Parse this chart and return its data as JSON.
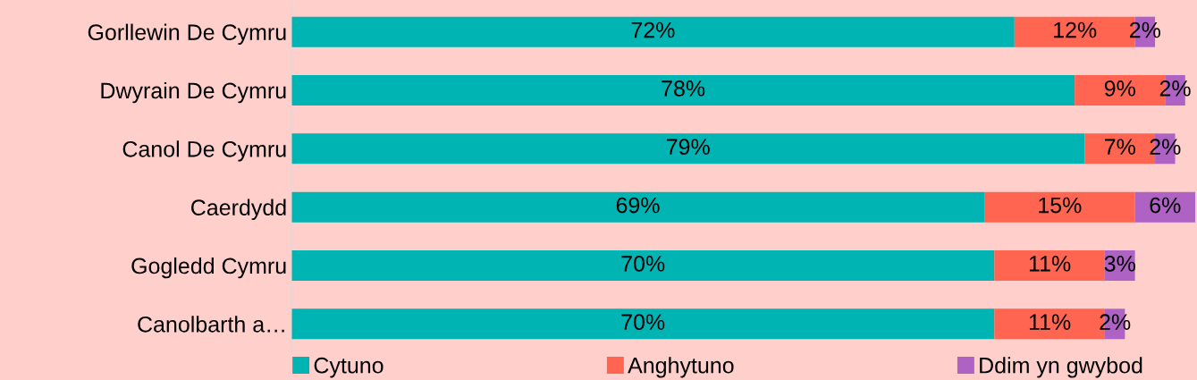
{
  "chart_data": {
    "type": "bar",
    "orientation": "horizontal",
    "stacked": true,
    "categories": [
      "Gorllewin De Cymru",
      "Dwyrain De Cymru",
      "Canol De Cymru",
      "Caerdydd",
      "Gogledd Cymru",
      "Canolbarth a…"
    ],
    "series": [
      {
        "name": "Cytuno",
        "color": "#00b4b4",
        "values": [
          72,
          78,
          79,
          69,
          70,
          70
        ],
        "value_labels": [
          "72%",
          "78%",
          "79%",
          "69%",
          "70%",
          "70%"
        ]
      },
      {
        "name": "Anghytuno",
        "color": "#ff6551",
        "values": [
          12,
          9,
          7,
          15,
          11,
          11
        ],
        "value_labels": [
          "12%",
          "9%",
          "7%",
          "15%",
          "11%",
          "11%"
        ]
      },
      {
        "name": "Ddim yn gwybod",
        "color": "#ad62c4",
        "values": [
          2,
          2,
          2,
          6,
          3,
          2
        ],
        "value_labels": [
          "2%",
          "2%",
          "2%",
          "6%",
          "3%",
          "2%"
        ]
      }
    ],
    "tick_labels": "y",
    "grid": false,
    "legend": "bottom"
  }
}
